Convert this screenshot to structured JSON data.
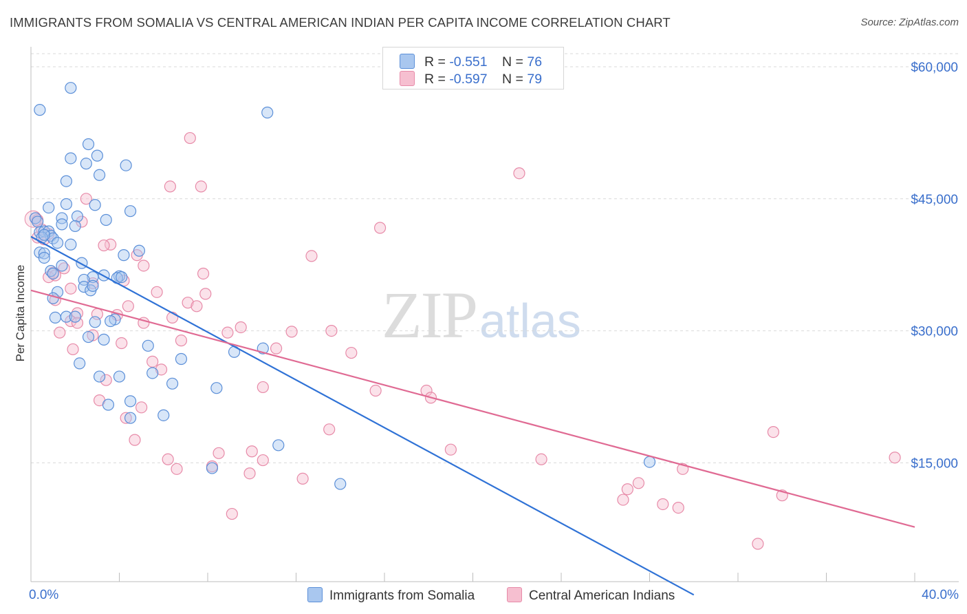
{
  "header": {
    "title": "IMMIGRANTS FROM SOMALIA VS CENTRAL AMERICAN INDIAN PER CAPITA INCOME CORRELATION CHART",
    "source": "Source: ZipAtlas.com"
  },
  "watermark": {
    "zip": "ZIP",
    "atlas": "atlas"
  },
  "legend_top": [
    {
      "r_label": "R =",
      "r_value": "-0.551",
      "n_label": "N =",
      "n_value": "76"
    },
    {
      "r_label": "R =",
      "r_value": "-0.597",
      "n_label": "N =",
      "n_value": "79"
    }
  ],
  "legend_bottom": [
    "Immigrants from Somalia",
    "Central American Indians"
  ],
  "colors": {
    "somalia_fill": "#a9c7ef",
    "somalia_stroke": "#5b8fd8",
    "somalia_line": "#2f72d6",
    "cai_fill": "#f6bfd0",
    "cai_stroke": "#e78aa8",
    "cai_line": "#e06a93",
    "axis_label": "#3a6fcc",
    "grid": "#d9d9d9"
  },
  "chart_data": {
    "type": "scatter",
    "ylabel": "Per Capita Income",
    "xlabel": "",
    "xlim": [
      0,
      40
    ],
    "ylim": [
      0,
      62000
    ],
    "x_tick_labels": [
      {
        "value": 0,
        "label": "0.0%"
      },
      {
        "value": 40,
        "label": "40.0%"
      }
    ],
    "y_tick_labels": [
      {
        "value": 15000,
        "label": "$15,000"
      },
      {
        "value": 30000,
        "label": "$30,000"
      },
      {
        "value": 45000,
        "label": "$45,000"
      },
      {
        "value": 60000,
        "label": "$60,000"
      }
    ],
    "grid": true,
    "series": [
      {
        "name": "Immigrants from Somalia",
        "r": -0.551,
        "n": 76,
        "trend": [
          [
            0.0,
            40700
          ],
          [
            30.0,
            0
          ]
        ],
        "points": [
          [
            1.8,
            57600
          ],
          [
            0.4,
            55100
          ],
          [
            10.7,
            54800
          ],
          [
            2.6,
            51200
          ],
          [
            1.8,
            49600
          ],
          [
            3.0,
            49900
          ],
          [
            2.5,
            49000
          ],
          [
            4.3,
            48800
          ],
          [
            3.1,
            47700
          ],
          [
            1.6,
            47000
          ],
          [
            1.6,
            44400
          ],
          [
            2.9,
            44300
          ],
          [
            0.8,
            44000
          ],
          [
            4.5,
            43600
          ],
          [
            0.2,
            42800
          ],
          [
            2.1,
            43000
          ],
          [
            1.4,
            42800
          ],
          [
            3.4,
            42600
          ],
          [
            0.3,
            42400
          ],
          [
            1.4,
            42100
          ],
          [
            2.0,
            41900
          ],
          [
            0.4,
            41200
          ],
          [
            0.6,
            41300
          ],
          [
            0.8,
            41300
          ],
          [
            0.9,
            40800
          ],
          [
            1.0,
            40500
          ],
          [
            0.5,
            40600
          ],
          [
            0.6,
            40900
          ],
          [
            1.2,
            40000
          ],
          [
            1.8,
            39800
          ],
          [
            4.9,
            39100
          ],
          [
            0.4,
            38900
          ],
          [
            4.2,
            38600
          ],
          [
            0.6,
            38800
          ],
          [
            0.6,
            38300
          ],
          [
            2.3,
            37700
          ],
          [
            1.4,
            37400
          ],
          [
            0.9,
            36800
          ],
          [
            1.0,
            36500
          ],
          [
            3.3,
            36300
          ],
          [
            2.8,
            36100
          ],
          [
            4.0,
            36200
          ],
          [
            3.9,
            36000
          ],
          [
            4.1,
            36100
          ],
          [
            2.4,
            35800
          ],
          [
            2.4,
            35000
          ],
          [
            2.7,
            34600
          ],
          [
            1.2,
            34400
          ],
          [
            1.0,
            33700
          ],
          [
            2.8,
            35100
          ],
          [
            1.6,
            31600
          ],
          [
            1.1,
            31500
          ],
          [
            3.8,
            31300
          ],
          [
            3.6,
            31100
          ],
          [
            2.9,
            31000
          ],
          [
            2.6,
            29300
          ],
          [
            3.3,
            29000
          ],
          [
            5.3,
            28300
          ],
          [
            9.2,
            27600
          ],
          [
            10.5,
            28000
          ],
          [
            6.8,
            26800
          ],
          [
            2.2,
            26300
          ],
          [
            5.5,
            25200
          ],
          [
            3.1,
            24800
          ],
          [
            4.0,
            24800
          ],
          [
            6.4,
            24000
          ],
          [
            8.4,
            23500
          ],
          [
            3.5,
            21600
          ],
          [
            4.5,
            22000
          ],
          [
            6.0,
            20400
          ],
          [
            4.5,
            20100
          ],
          [
            11.2,
            17000
          ],
          [
            8.2,
            14400
          ],
          [
            14.0,
            12600
          ],
          [
            28.0,
            15100
          ],
          [
            2.0,
            31600
          ]
        ]
      },
      {
        "name": "Central American Indians",
        "r": -0.597,
        "n": 79,
        "trend": [
          [
            0.0,
            34600
          ],
          [
            40.0,
            7700
          ]
        ],
        "points": [
          [
            7.2,
            51900
          ],
          [
            22.1,
            47900
          ],
          [
            6.3,
            46400
          ],
          [
            7.7,
            46400
          ],
          [
            2.5,
            45000
          ],
          [
            0.2,
            42800
          ],
          [
            0.3,
            42600
          ],
          [
            2.3,
            42400
          ],
          [
            15.8,
            41700
          ],
          [
            0.5,
            41500
          ],
          [
            0.8,
            41000
          ],
          [
            0.3,
            40600
          ],
          [
            0.6,
            40400
          ],
          [
            3.6,
            39800
          ],
          [
            3.3,
            39700
          ],
          [
            4.8,
            38600
          ],
          [
            12.7,
            38500
          ],
          [
            5.1,
            37400
          ],
          [
            1.5,
            37100
          ],
          [
            1.0,
            36600
          ],
          [
            7.8,
            36500
          ],
          [
            4.2,
            35700
          ],
          [
            2.8,
            35400
          ],
          [
            0.8,
            36100
          ],
          [
            1.1,
            36300
          ],
          [
            1.8,
            34800
          ],
          [
            5.7,
            34400
          ],
          [
            7.9,
            34200
          ],
          [
            7.1,
            33200
          ],
          [
            1.1,
            33500
          ],
          [
            7.5,
            32800
          ],
          [
            4.4,
            32800
          ],
          [
            2.1,
            32000
          ],
          [
            3.0,
            31900
          ],
          [
            3.9,
            31800
          ],
          [
            1.8,
            31100
          ],
          [
            2.1,
            30900
          ],
          [
            5.1,
            30900
          ],
          [
            6.4,
            31500
          ],
          [
            9.5,
            30400
          ],
          [
            8.9,
            29800
          ],
          [
            11.8,
            29900
          ],
          [
            13.6,
            30000
          ],
          [
            1.3,
            29800
          ],
          [
            2.8,
            29500
          ],
          [
            4.1,
            28600
          ],
          [
            6.8,
            28900
          ],
          [
            11.1,
            28000
          ],
          [
            1.9,
            27900
          ],
          [
            14.5,
            27500
          ],
          [
            5.5,
            26500
          ],
          [
            5.9,
            25600
          ],
          [
            3.4,
            24400
          ],
          [
            10.5,
            23600
          ],
          [
            15.6,
            23200
          ],
          [
            17.9,
            23200
          ],
          [
            18.1,
            22400
          ],
          [
            3.1,
            22100
          ],
          [
            5.0,
            21300
          ],
          [
            4.3,
            20100
          ],
          [
            13.5,
            18800
          ],
          [
            33.6,
            18500
          ],
          [
            4.7,
            17600
          ],
          [
            19.0,
            16500
          ],
          [
            8.5,
            16100
          ],
          [
            10.0,
            16300
          ],
          [
            6.2,
            15400
          ],
          [
            10.5,
            15300
          ],
          [
            23.1,
            15400
          ],
          [
            39.1,
            15600
          ],
          [
            6.6,
            14300
          ],
          [
            8.2,
            14600
          ],
          [
            9.9,
            13800
          ],
          [
            12.3,
            13200
          ],
          [
            29.5,
            14300
          ],
          [
            27.5,
            12700
          ],
          [
            26.8,
            10800
          ],
          [
            34.0,
            11300
          ],
          [
            9.1,
            9200
          ]
        ],
        "extra_points": [
          [
            27.0,
            12000
          ],
          [
            28.6,
            10300
          ],
          [
            29.3,
            9900
          ],
          [
            32.9,
            5800
          ]
        ]
      }
    ]
  }
}
